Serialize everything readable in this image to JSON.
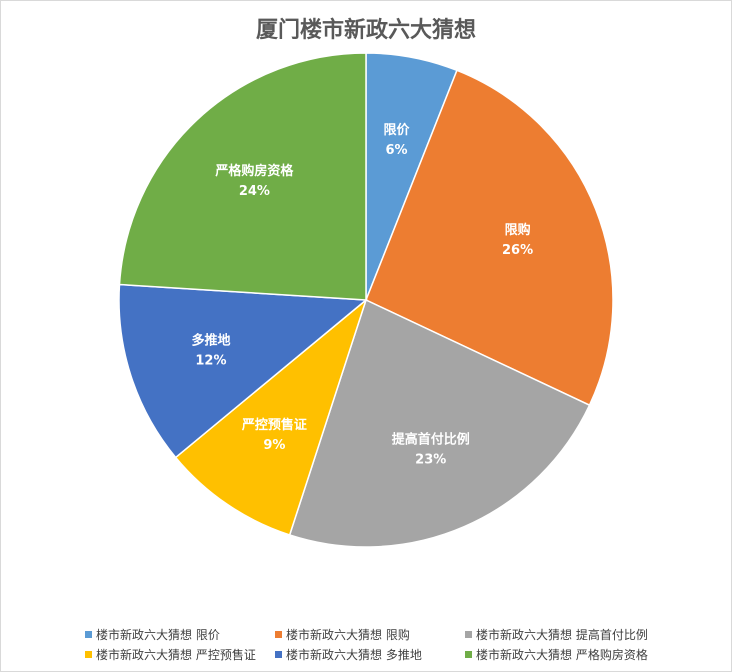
{
  "chart_data": {
    "type": "pie",
    "title": "厦门楼市新政六大猜想",
    "series_name": "楼市新政六大猜想",
    "categories": [
      "限价",
      "限购",
      "提高首付比例",
      "严控预售证",
      "多推地",
      "严格购房资格"
    ],
    "values": [
      6,
      26,
      23,
      9,
      12,
      24
    ],
    "labels": [
      "6%",
      "26%",
      "23%",
      "9%",
      "12%",
      "24%"
    ],
    "colors": [
      "#5B9BD5",
      "#ED7D31",
      "#A5A5A5",
      "#FFC000",
      "#4472C4",
      "#70AD47"
    ],
    "start_angle": "top",
    "direction": "clockwise",
    "legend_position": "bottom"
  }
}
